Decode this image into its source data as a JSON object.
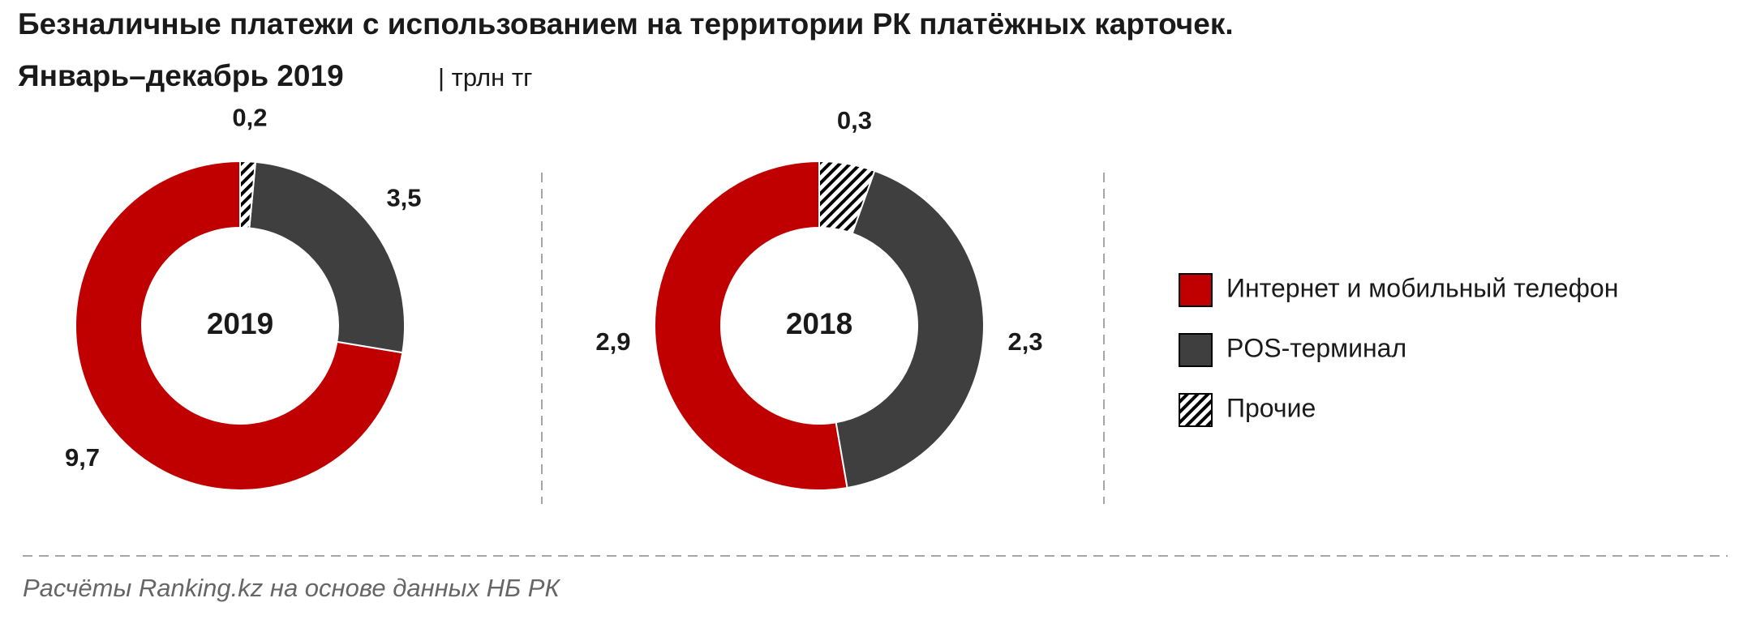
{
  "title": "Безналичные платежи  с использованием на территории РК платёжных  карточек.",
  "subtitle": "Январь–декабрь 2019",
  "unit": "| трлн тг",
  "source": "Расчёты Ranking.kz на основе данных  НБ РК",
  "legend": {
    "names": [
      "Интернет и мобильный телефон",
      "POS-терминал",
      "Прочие"
    ],
    "colors": [
      "#c00000",
      "#3f3f3f",
      "#000000"
    ],
    "hatch": [
      false,
      false,
      true
    ]
  },
  "chart_data": [
    {
      "type": "pie",
      "label": "2019",
      "values": [
        9.7,
        3.5,
        0.2
      ],
      "value_labels": [
        "9,7",
        "3,5",
        "0,2"
      ]
    },
    {
      "type": "pie",
      "label": "2018",
      "values": [
        2.9,
        2.3,
        0.3
      ],
      "value_labels": [
        "2,9",
        "2,3",
        "0,3"
      ]
    }
  ]
}
